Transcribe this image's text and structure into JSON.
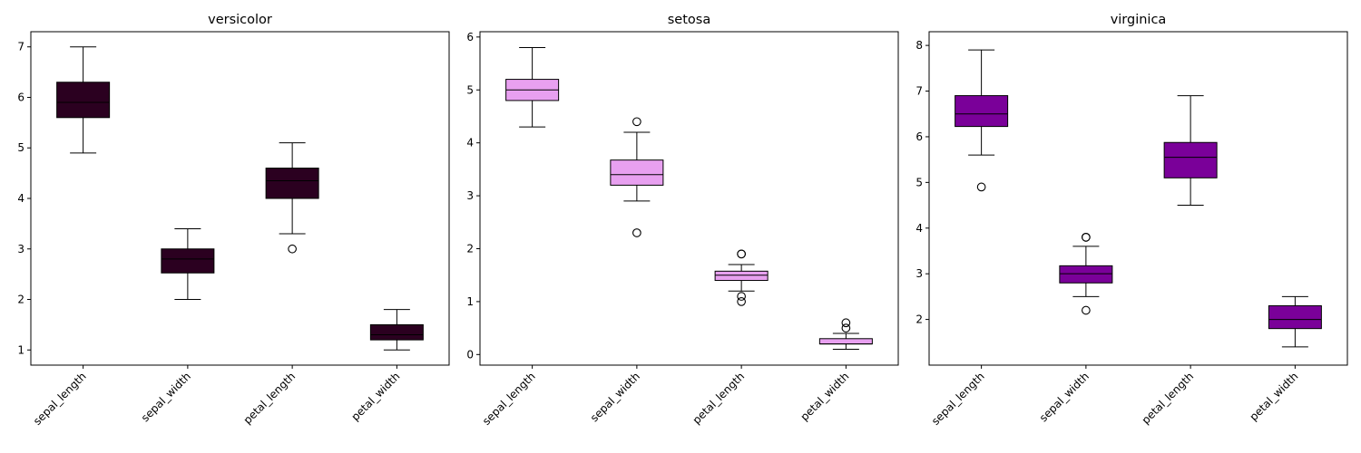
{
  "chart_data": [
    {
      "type": "box",
      "title": "versicolor",
      "xlabel": "",
      "ylabel": "",
      "categories": [
        "sepal_length",
        "sepal_width",
        "petal_length",
        "petal_width"
      ],
      "ylim": [
        0.7,
        7.3
      ],
      "yticks": [
        1,
        2,
        3,
        4,
        5,
        6,
        7
      ],
      "grid": false,
      "color": "#2b0020",
      "boxes": [
        {
          "whislo": 4.9,
          "q1": 5.6,
          "med": 5.9,
          "q3": 6.3,
          "whishi": 7.0,
          "fliers": []
        },
        {
          "whislo": 2.0,
          "q1": 2.525,
          "med": 2.8,
          "q3": 3.0,
          "whishi": 3.4,
          "fliers": []
        },
        {
          "whislo": 3.3,
          "q1": 4.0,
          "med": 4.35,
          "q3": 4.6,
          "whishi": 5.1,
          "fliers": [
            3.0
          ]
        },
        {
          "whislo": 1.0,
          "q1": 1.2,
          "med": 1.3,
          "q3": 1.5,
          "whishi": 1.8,
          "fliers": []
        }
      ]
    },
    {
      "type": "box",
      "title": "setosa",
      "xlabel": "",
      "ylabel": "",
      "categories": [
        "sepal_length",
        "sepal_width",
        "petal_length",
        "petal_width"
      ],
      "ylim": [
        -0.2,
        6.1
      ],
      "yticks": [
        0,
        1,
        2,
        3,
        4,
        5,
        6
      ],
      "grid": false,
      "color": "#e8a0f0",
      "boxes": [
        {
          "whislo": 4.3,
          "q1": 4.8,
          "med": 5.0,
          "q3": 5.2,
          "whishi": 5.8,
          "fliers": []
        },
        {
          "whislo": 2.9,
          "q1": 3.2,
          "med": 3.4,
          "q3": 3.675,
          "whishi": 4.2,
          "fliers": [
            4.4,
            2.3
          ]
        },
        {
          "whislo": 1.2,
          "q1": 1.4,
          "med": 1.5,
          "q3": 1.575,
          "whishi": 1.7,
          "fliers": [
            1.9,
            1.9,
            1.0,
            1.1
          ]
        },
        {
          "whislo": 0.1,
          "q1": 0.2,
          "med": 0.2,
          "q3": 0.3,
          "whishi": 0.4,
          "fliers": [
            0.5,
            0.6
          ]
        }
      ]
    },
    {
      "type": "box",
      "title": "virginica",
      "xlabel": "",
      "ylabel": "",
      "categories": [
        "sepal_length",
        "sepal_width",
        "petal_length",
        "petal_width"
      ],
      "ylim": [
        1.0,
        8.3
      ],
      "yticks": [
        2,
        3,
        4,
        5,
        6,
        7,
        8
      ],
      "grid": false,
      "color": "#7a0099",
      "boxes": [
        {
          "whislo": 5.6,
          "q1": 6.225,
          "med": 6.5,
          "q3": 6.9,
          "whishi": 7.9,
          "fliers": [
            4.9
          ]
        },
        {
          "whislo": 2.5,
          "q1": 2.8,
          "med": 3.0,
          "q3": 3.175,
          "whishi": 3.6,
          "fliers": [
            3.8,
            3.8,
            2.2
          ]
        },
        {
          "whislo": 4.5,
          "q1": 5.1,
          "med": 5.55,
          "q3": 5.875,
          "whishi": 6.9,
          "fliers": []
        },
        {
          "whislo": 1.4,
          "q1": 1.8,
          "med": 2.0,
          "q3": 2.3,
          "whishi": 2.5,
          "fliers": []
        }
      ]
    }
  ]
}
